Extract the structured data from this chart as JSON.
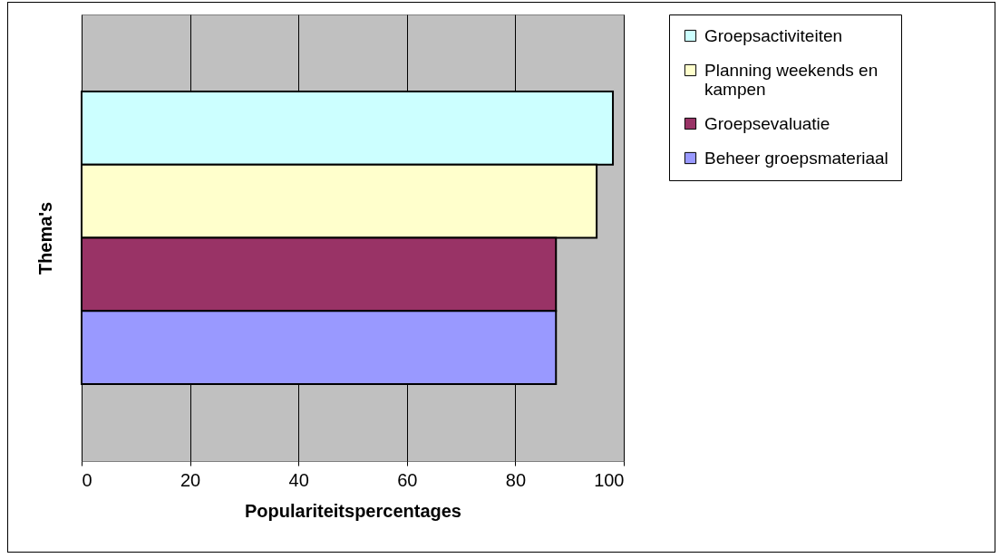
{
  "chart_data": {
    "type": "bar",
    "orientation": "horizontal",
    "xlabel": "Populariteitspercentages",
    "ylabel": "Thema's",
    "categories": [
      null
    ],
    "series": [
      {
        "name": "Groepsactiviteiten",
        "color": "#ccffff",
        "values": [
          98
        ]
      },
      {
        "name": "Planning weekends en kampen",
        "color": "#ffffcc",
        "values": [
          95
        ]
      },
      {
        "name": "Groepsevaluatie",
        "color": "#993366",
        "values": [
          87.5
        ]
      },
      {
        "name": "Beheer groepsmateriaal",
        "color": "#9999ff",
        "values": [
          87.5
        ]
      }
    ],
    "xlim": [
      0,
      100
    ],
    "xticks": [
      0,
      20,
      40,
      60,
      80,
      100
    ],
    "grid": "x",
    "legend": "right"
  }
}
